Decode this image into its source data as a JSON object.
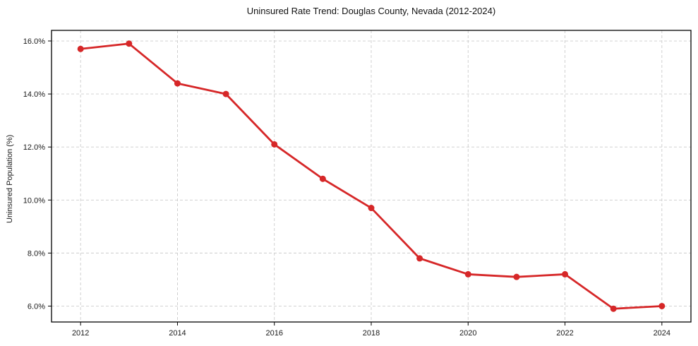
{
  "figure": {
    "background": "#ffffff",
    "text_color": "#1a1a1a",
    "grid_color": "#cccccc",
    "spine_color": "#000000"
  },
  "chart_data": {
    "type": "line",
    "title": "Uninsured Rate Trend: Douglas County, Nevada (2012-2024)",
    "xlabel": "",
    "ylabel": "Uninsured Population (%)",
    "x": [
      2012,
      2013,
      2014,
      2015,
      2016,
      2017,
      2018,
      2019,
      2020,
      2021,
      2022,
      2023,
      2024
    ],
    "values": [
      15.7,
      15.9,
      14.4,
      14.0,
      12.1,
      10.8,
      9.7,
      7.8,
      7.2,
      7.1,
      7.2,
      5.9,
      6.0
    ],
    "xlim": [
      2011.4,
      2024.6
    ],
    "ylim": [
      5.4,
      16.4
    ],
    "xticks": [
      2012,
      2014,
      2016,
      2018,
      2020,
      2022,
      2024
    ],
    "xtick_labels": [
      "2012",
      "2014",
      "2016",
      "2018",
      "2020",
      "2022",
      "2024"
    ],
    "yticks": [
      6,
      8,
      10,
      12,
      14,
      16
    ],
    "ytick_labels": [
      "6.0%",
      "8.0%",
      "10.0%",
      "12.0%",
      "14.0%",
      "16.0%"
    ],
    "grid": true,
    "grid_style": "dashed",
    "legend": false,
    "line_color": "#d62728",
    "marker": "circle"
  }
}
